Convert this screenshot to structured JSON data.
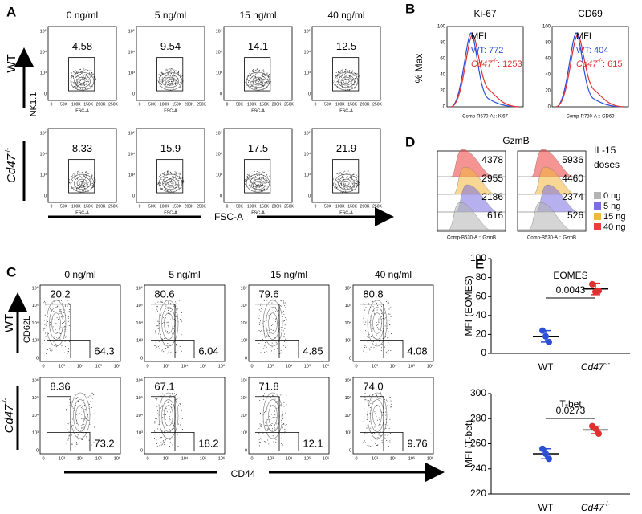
{
  "panel_a": {
    "letter": "A",
    "doses": [
      "0 ng/ml",
      "5 ng/ml",
      "15 ng/ml",
      "40 ng/ml"
    ],
    "rows": [
      {
        "genotype": {
          "text": "WT"
        },
        "gates": [
          "4.58",
          "9.54",
          "14.1",
          "12.5"
        ]
      },
      {
        "genotype": {
          "text": "Cd47",
          "sup": "-/-"
        },
        "gates": [
          "8.33",
          "15.9",
          "17.5",
          "21.9"
        ]
      }
    ],
    "y_label": "NK1.1",
    "x_label": "FSC-A",
    "yticks": [
      "10⁵",
      "10⁴",
      "10³",
      "0"
    ],
    "xticks": [
      "0",
      "50K",
      "100K",
      "150K",
      "200K",
      "250K"
    ]
  },
  "panel_b": {
    "letter": "B",
    "y_label": "% Max",
    "yticks": [
      "100",
      "80",
      "60",
      "40",
      "20",
      "0"
    ],
    "mfi": "MFI",
    "plots": [
      {
        "title": "Ki-67",
        "x_label": "Comp-R670-A :: Ki67",
        "wt": "WT: 772",
        "ko": {
          "text": "Cd47",
          "sup": "-/-",
          "value": ": 1253"
        }
      },
      {
        "title": "CD69",
        "x_label": "Comp-R730-A :: CD69",
        "wt": "WT: 404",
        "ko": {
          "text": "Cd47",
          "sup": "-/-",
          "value": ": 615"
        }
      }
    ]
  },
  "panel_d": {
    "letter": "D",
    "title": "GzmB",
    "legend_title": [
      "IL-15",
      "doses"
    ],
    "items": [
      {
        "name": "0 ng",
        "color": "#b3b3b3"
      },
      {
        "name": "5 ng",
        "color": "#7b6fe0"
      },
      {
        "name": "15 ng",
        "color": "#f2b63c"
      },
      {
        "name": "40 ng",
        "color": "#ee3b3b"
      }
    ],
    "plots": [
      {
        "x_label": "Comp-B530-A :: GzmB",
        "mfi": [
          "4378",
          "2955",
          "2186",
          "616"
        ]
      },
      {
        "x_label": "Comp-B530-A :: GzmB",
        "mfi": [
          "5936",
          "4460",
          "2374",
          "526"
        ]
      }
    ]
  },
  "panel_c": {
    "letter": "C",
    "doses": [
      "0 ng/ml",
      "5 ng/ml",
      "15 ng/ml",
      "40 ng/ml"
    ],
    "rows": [
      {
        "genotype": {
          "text": "WT"
        },
        "top_left": [
          "20.2",
          "80.6",
          "79.6",
          "80.8"
        ],
        "bottom_right": [
          "64.3",
          "6.04",
          "4.85",
          "4.08"
        ]
      },
      {
        "genotype": {
          "text": "Cd47",
          "sup": "-/-"
        },
        "top_left": [
          "8.36",
          "67.1",
          "71.8",
          "74.0"
        ],
        "bottom_right": [
          "73.2",
          "18.2",
          "12.1",
          "9.76"
        ]
      }
    ],
    "y_label": "CD62L",
    "x_label": "CD44",
    "yticks": [
      "10⁶",
      "10⁵",
      "10⁴",
      "10³",
      "0"
    ],
    "xticks": [
      "0",
      "10³",
      "10⁴",
      "10⁵",
      "10⁶"
    ]
  },
  "panel_e": {
    "letter": "E"
  },
  "chart_data": [
    {
      "type": "dot",
      "title": "EOMES",
      "y_label": "MFI (EOMES)",
      "p_value": "0.0043",
      "ylim": [
        0,
        100
      ],
      "yticks": [
        0,
        20,
        40,
        60,
        80,
        100
      ],
      "series": [
        {
          "name": "WT",
          "color": "#2b4fd8",
          "values": [
            24,
            18,
            12
          ],
          "mean": 18,
          "error": 6
        },
        {
          "name": "Cd47",
          "sup": "-/-",
          "color": "#e03030",
          "values": [
            73,
            65,
            66
          ],
          "mean": 68,
          "error": 6
        }
      ]
    },
    {
      "type": "dot",
      "title": "T-bet",
      "y_label": "MFI (T-bet)",
      "p_value": "0.0273",
      "ylim": [
        220,
        300
      ],
      "yticks": [
        220,
        240,
        260,
        280,
        300
      ],
      "series": [
        {
          "name": "WT",
          "color": "#2b4fd8",
          "values": [
            256,
            252,
            248
          ],
          "mean": 252,
          "error": 4
        },
        {
          "name": "Cd47",
          "sup": "-/-",
          "color": "#e03030",
          "values": [
            274,
            272,
            268
          ],
          "mean": 271,
          "error": 3
        }
      ]
    }
  ]
}
